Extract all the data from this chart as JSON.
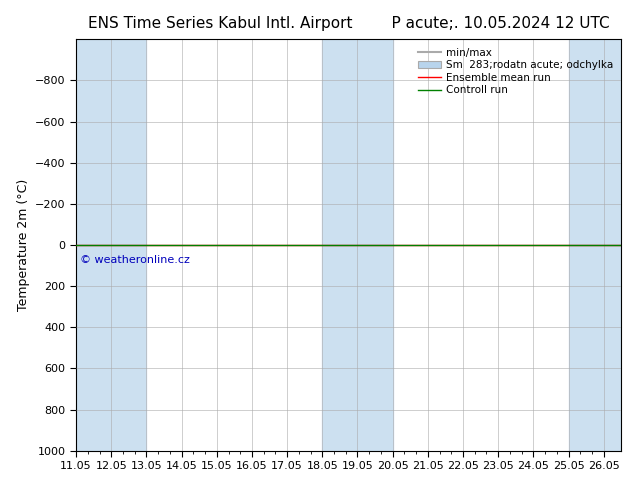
{
  "title_left": "ENS Time Series Kabul Intl. Airport",
  "title_right": "P acute;. 10.05.2024 12 UTC",
  "ylabel": "Temperature 2m (°C)",
  "xlim_min": 11.0,
  "xlim_max": 26.5,
  "ylim_top": -1000,
  "ylim_bottom": 1000,
  "yticks": [
    -800,
    -600,
    -400,
    -200,
    0,
    200,
    400,
    600,
    800,
    1000
  ],
  "xtick_labels": [
    "11.05",
    "12.05",
    "13.05",
    "14.05",
    "15.05",
    "16.05",
    "17.05",
    "18.05",
    "19.05",
    "20.05",
    "21.05",
    "22.05",
    "23.05",
    "24.05",
    "25.05",
    "26.05"
  ],
  "xtick_positions": [
    11.0,
    12.0,
    13.0,
    14.0,
    15.0,
    16.0,
    17.0,
    18.0,
    19.0,
    20.0,
    21.0,
    22.0,
    23.0,
    24.0,
    25.0,
    26.0
  ],
  "minor_xtick_positions": [
    11.333,
    11.667,
    12.333,
    12.667,
    13.333,
    13.667,
    14.333,
    14.667,
    15.333,
    15.667,
    16.333,
    16.667,
    17.333,
    17.667,
    18.333,
    18.667,
    19.333,
    19.667,
    20.333,
    20.667,
    21.333,
    21.667,
    22.333,
    22.667,
    23.333,
    23.667,
    24.333,
    24.667,
    25.333,
    25.667
  ],
  "shaded_bands": [
    [
      11.0,
      12.0
    ],
    [
      12.0,
      13.0
    ],
    [
      18.0,
      19.0
    ],
    [
      19.0,
      20.0
    ],
    [
      25.0,
      26.05
    ]
  ],
  "shade_color": "#cce0f0",
  "line_y": 0,
  "ensemble_mean_color": "#ff0000",
  "control_run_color": "#008000",
  "minmax_color": "#aaaaaa",
  "smstd_color": "#b8d4ec",
  "watermark": "© weatheronline.cz",
  "watermark_color": "#0000bb",
  "legend_entries": [
    "min/max",
    "Sm  283;rodatn acute; odchylka",
    "Ensemble mean run",
    "Controll run"
  ],
  "background_color": "#ffffff",
  "plot_bg_color": "#ffffff"
}
